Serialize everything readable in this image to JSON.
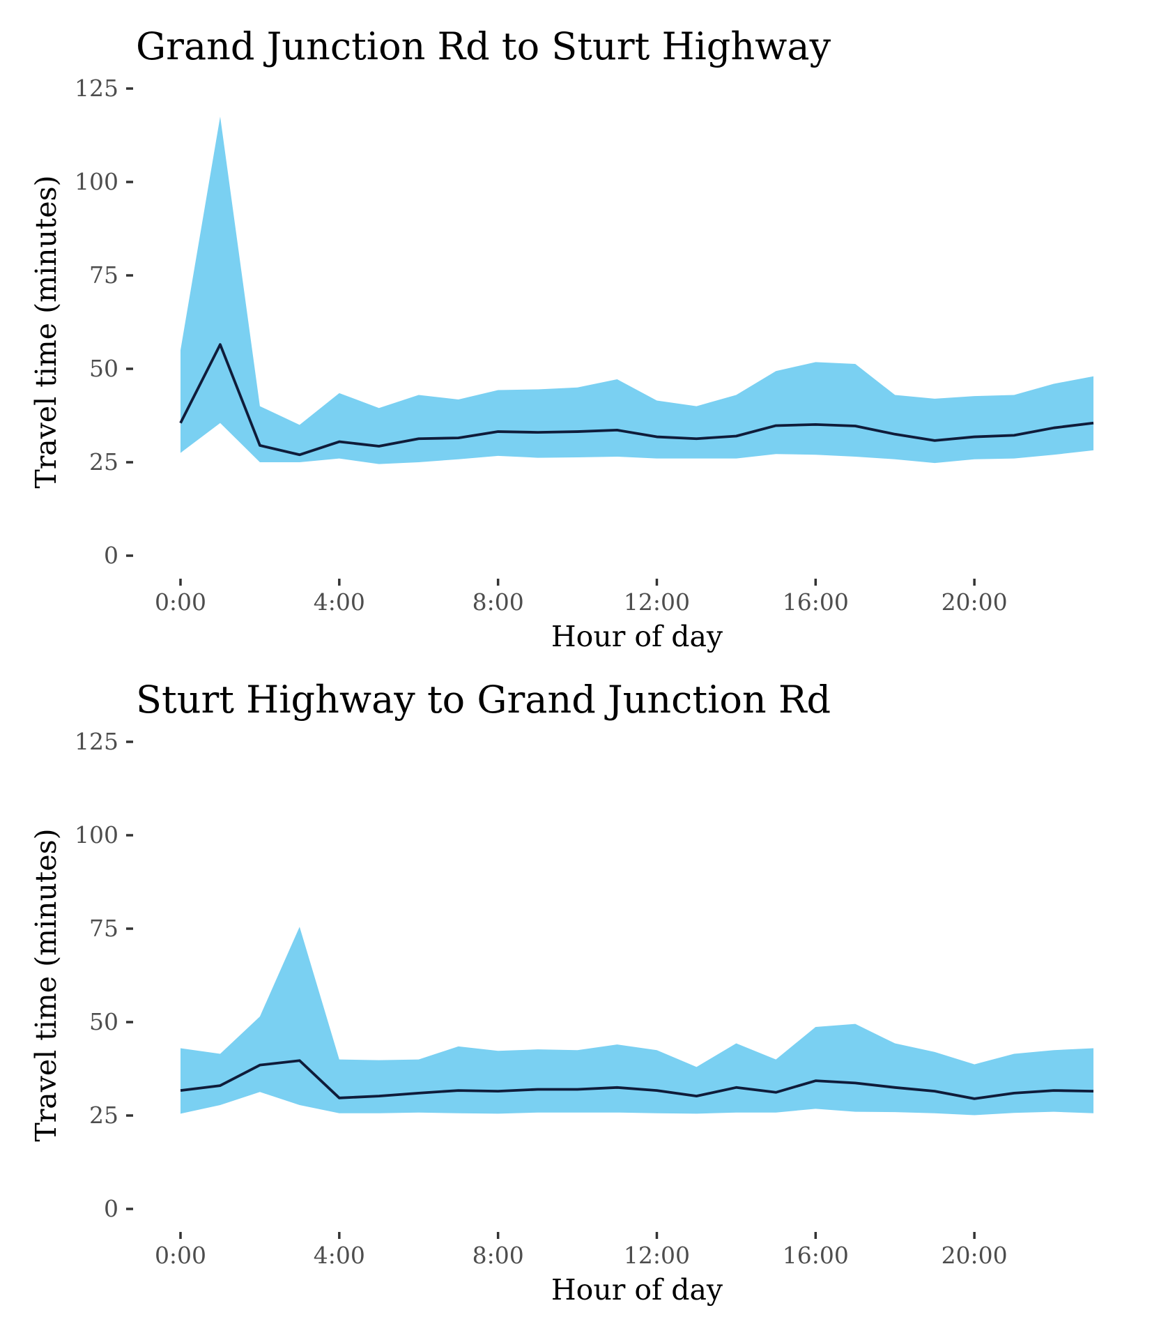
{
  "chart_data": [
    {
      "type": "area",
      "title": "Grand Junction Rd to Sturt Highway",
      "xlabel": "Hour of day",
      "ylabel": "Travel time (minutes)",
      "x": [
        0,
        1,
        2,
        3,
        4,
        5,
        6,
        7,
        8,
        9,
        10,
        11,
        12,
        13,
        14,
        15,
        16,
        17,
        18,
        19,
        20,
        21,
        22,
        23
      ],
      "xticks": [
        0,
        4,
        8,
        12,
        16,
        20
      ],
      "xtick_labels": [
        "0:00",
        "4:00",
        "8:00",
        "12:00",
        "16:00",
        "20:00"
      ],
      "yticks": [
        0,
        25,
        50,
        75,
        100,
        125
      ],
      "ytick_labels": [
        "0",
        "25",
        "50",
        "75",
        "100",
        "125"
      ],
      "ylim": [
        0,
        125
      ],
      "xlim": [
        0,
        23
      ],
      "grid": false,
      "colors": {
        "band": "#7ad0f2",
        "line": "#0f1c3a"
      },
      "series": [
        {
          "role": "lower",
          "values": [
            27.5,
            35.5,
            25.0,
            25.0,
            26.0,
            24.5,
            25.0,
            25.8,
            26.7,
            26.2,
            26.3,
            26.5,
            26.0,
            26.0,
            26.0,
            27.2,
            27.0,
            26.5,
            25.8,
            24.8,
            25.8,
            26.0,
            27.0,
            28.2
          ]
        },
        {
          "role": "median",
          "values": [
            35.5,
            56.5,
            29.5,
            27.0,
            30.5,
            29.3,
            31.3,
            31.5,
            33.2,
            33.0,
            33.2,
            33.6,
            31.8,
            31.3,
            32.0,
            34.8,
            35.1,
            34.7,
            32.5,
            30.8,
            31.8,
            32.2,
            34.2,
            35.5
          ]
        },
        {
          "role": "upper",
          "values": [
            55.0,
            117.5,
            40.0,
            35.0,
            43.5,
            39.5,
            43.0,
            41.8,
            44.3,
            44.5,
            45.0,
            47.2,
            41.5,
            40.0,
            43.0,
            49.4,
            51.8,
            51.3,
            43.0,
            42.0,
            42.7,
            43.0,
            46.0,
            48.0
          ]
        }
      ]
    },
    {
      "type": "area",
      "title": "Sturt Highway to Grand Junction Rd",
      "xlabel": "Hour of day",
      "ylabel": "Travel time (minutes)",
      "x": [
        0,
        1,
        2,
        3,
        4,
        5,
        6,
        7,
        8,
        9,
        10,
        11,
        12,
        13,
        14,
        15,
        16,
        17,
        18,
        19,
        20,
        21,
        22,
        23
      ],
      "xticks": [
        0,
        4,
        8,
        12,
        16,
        20
      ],
      "xtick_labels": [
        "0:00",
        "4:00",
        "8:00",
        "12:00",
        "16:00",
        "20:00"
      ],
      "yticks": [
        0,
        25,
        50,
        75,
        100,
        125
      ],
      "ytick_labels": [
        "0",
        "25",
        "50",
        "75",
        "100",
        "125"
      ],
      "ylim": [
        0,
        125
      ],
      "xlim": [
        0,
        23
      ],
      "grid": false,
      "colors": {
        "band": "#7ad0f2",
        "line": "#0f1c3a"
      },
      "series": [
        {
          "role": "lower",
          "values": [
            25.5,
            27.8,
            31.3,
            27.8,
            25.6,
            25.6,
            25.8,
            25.6,
            25.5,
            25.8,
            25.8,
            25.8,
            25.6,
            25.5,
            25.8,
            25.8,
            26.8,
            26.0,
            25.9,
            25.6,
            25.1,
            25.7,
            26.0,
            25.6
          ]
        },
        {
          "role": "median",
          "values": [
            31.7,
            33.0,
            38.5,
            39.7,
            29.7,
            30.2,
            31.0,
            31.7,
            31.5,
            32.0,
            32.0,
            32.5,
            31.7,
            30.2,
            32.5,
            31.2,
            34.3,
            33.7,
            32.5,
            31.5,
            29.5,
            31.0,
            31.7,
            31.5
          ]
        },
        {
          "role": "upper",
          "values": [
            43.0,
            41.5,
            51.5,
            75.5,
            40.0,
            39.8,
            40.0,
            43.5,
            42.3,
            42.7,
            42.5,
            44.0,
            42.5,
            38.0,
            44.3,
            40.0,
            48.7,
            49.5,
            44.3,
            42.0,
            38.7,
            41.5,
            42.5,
            43.0
          ]
        }
      ]
    }
  ]
}
